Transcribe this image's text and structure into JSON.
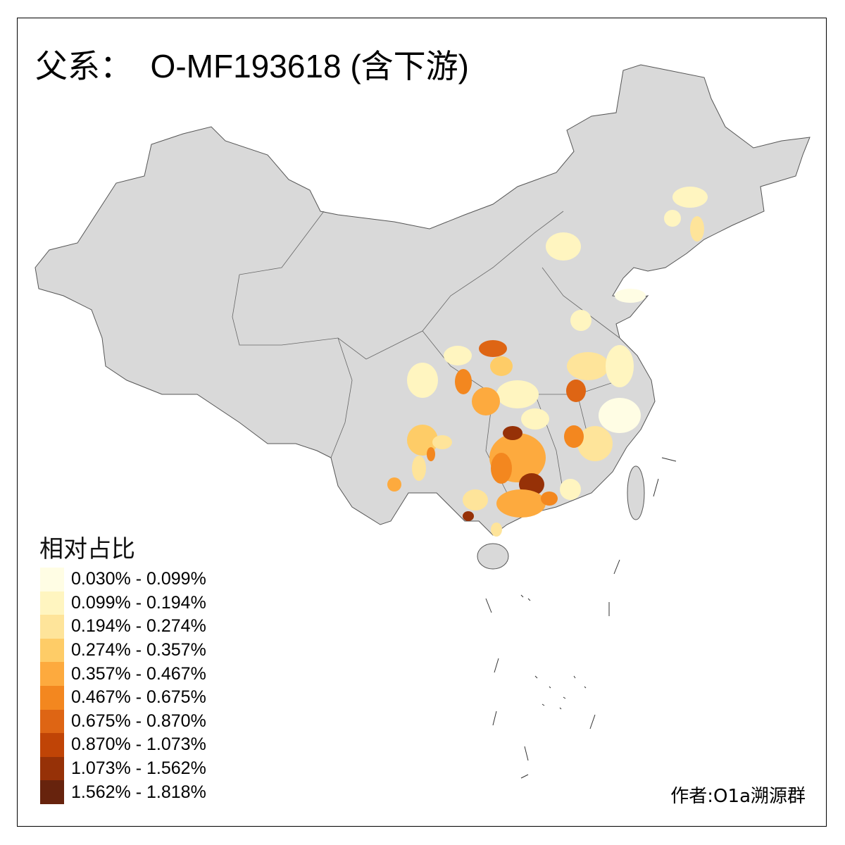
{
  "title": "父系：  O-MF193618 (含下游)",
  "legend": {
    "title": "相对占比",
    "classes": [
      {
        "label": "0.030% - 0.099%",
        "color": "#FFFDE4"
      },
      {
        "label": "0.099% - 0.194%",
        "color": "#FFF5C0"
      },
      {
        "label": "0.194% - 0.274%",
        "color": "#FEE49A"
      },
      {
        "label": "0.274% - 0.357%",
        "color": "#FECC67"
      },
      {
        "label": "0.357% - 0.467%",
        "color": "#FDAA3E"
      },
      {
        "label": "0.467% - 0.675%",
        "color": "#F3871F"
      },
      {
        "label": "0.675% - 0.870%",
        "color": "#DE6514"
      },
      {
        "label": "0.870% - 1.073%",
        "color": "#C04406"
      },
      {
        "label": "1.073% - 1.562%",
        "color": "#963107"
      },
      {
        "label": "1.562% - 1.818%",
        "color": "#67230D"
      }
    ]
  },
  "map": {
    "no_data_color": "#D9D9D9",
    "border_color": "#555555"
  },
  "credit": "作者:O1a溯源群"
}
